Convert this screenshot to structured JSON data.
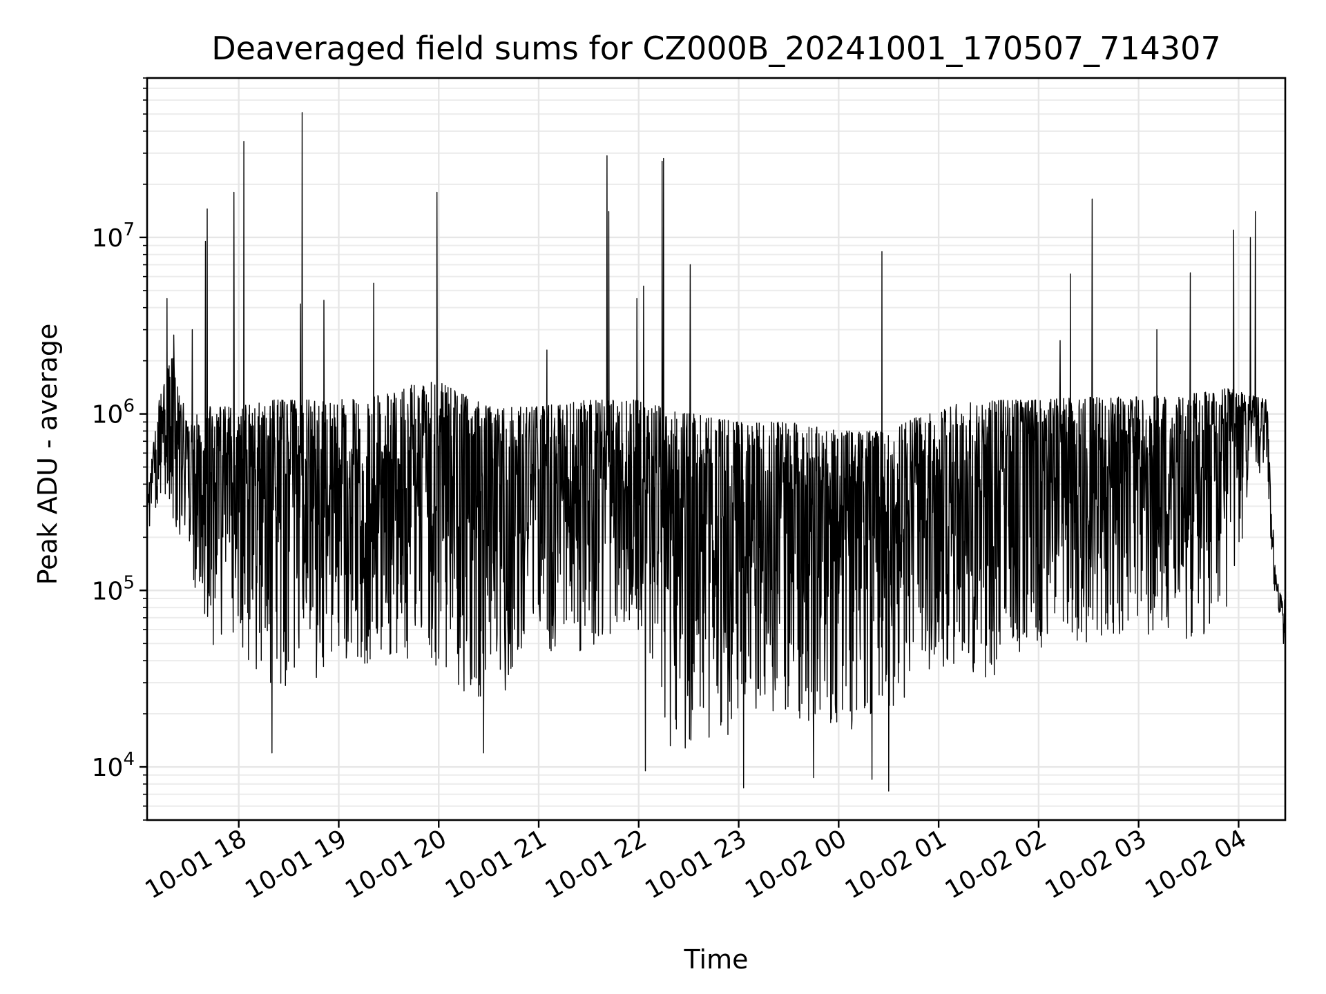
{
  "chart_data": {
    "type": "line",
    "title": "Deaveraged field sums for CZ000B_20241001_170507_714307",
    "xlabel": "Time",
    "ylabel": "Peak ADU - average",
    "yscale": "log",
    "ylim": [
      5000,
      80000000
    ],
    "xlim": [
      "2024-10-01 17:05",
      "2024-10-02 04:28"
    ],
    "x_ticks": [
      {
        "value": "2024-10-01 18:00",
        "label": "10-01 18"
      },
      {
        "value": "2024-10-01 19:00",
        "label": "10-01 19"
      },
      {
        "value": "2024-10-01 20:00",
        "label": "10-01 20"
      },
      {
        "value": "2024-10-01 21:00",
        "label": "10-01 21"
      },
      {
        "value": "2024-10-01 22:00",
        "label": "10-01 22"
      },
      {
        "value": "2024-10-01 23:00",
        "label": "10-01 23"
      },
      {
        "value": "2024-10-02 00:00",
        "label": "10-02 00"
      },
      {
        "value": "2024-10-02 01:00",
        "label": "10-02 01"
      },
      {
        "value": "2024-10-02 02:00",
        "label": "10-02 02"
      },
      {
        "value": "2024-10-02 03:00",
        "label": "10-02 03"
      },
      {
        "value": "2024-10-02 04:00",
        "label": "10-02 04"
      }
    ],
    "y_ticks": [
      {
        "value": 10000,
        "base": "10",
        "exp": "4"
      },
      {
        "value": 100000,
        "base": "10",
        "exp": "5"
      },
      {
        "value": 1000000,
        "base": "10",
        "exp": "6"
      },
      {
        "value": 10000000,
        "base": "10",
        "exp": "7"
      }
    ],
    "grid": true,
    "line_color": "#000000",
    "series": [
      {
        "spikes": [
          {
            "x": "2024-10-01 17:17",
            "y": 4500000
          },
          {
            "x": "2024-10-01 17:21",
            "y": 2800000
          },
          {
            "x": "2024-10-01 17:32",
            "y": 3000000
          },
          {
            "x": "2024-10-01 17:41",
            "y": 14500000
          },
          {
            "x": "2024-10-01 17:40",
            "y": 9500000
          },
          {
            "x": "2024-10-01 17:57",
            "y": 18000000
          },
          {
            "x": "2024-10-01 18:03",
            "y": 35000000
          },
          {
            "x": "2024-10-01 18:38",
            "y": 51000000
          },
          {
            "x": "2024-10-01 18:37",
            "y": 4200000
          },
          {
            "x": "2024-10-01 18:51",
            "y": 4400000
          },
          {
            "x": "2024-10-01 19:21",
            "y": 5500000
          },
          {
            "x": "2024-10-01 19:59",
            "y": 18000000
          },
          {
            "x": "2024-10-01 21:05",
            "y": 2300000
          },
          {
            "x": "2024-10-01 21:41",
            "y": 29000000
          },
          {
            "x": "2024-10-01 21:42",
            "y": 14000000
          },
          {
            "x": "2024-10-01 21:59",
            "y": 4500000
          },
          {
            "x": "2024-10-01 22:03",
            "y": 5300000
          },
          {
            "x": "2024-10-01 22:14",
            "y": 27000000
          },
          {
            "x": "2024-10-01 22:15",
            "y": 28000000
          },
          {
            "x": "2024-10-01 22:31",
            "y": 7000000
          },
          {
            "x": "2024-10-02 00:26",
            "y": 8300000
          },
          {
            "x": "2024-10-02 02:13",
            "y": 2600000
          },
          {
            "x": "2024-10-02 02:19",
            "y": 6200000
          },
          {
            "x": "2024-10-02 02:32",
            "y": 16500000
          },
          {
            "x": "2024-10-02 03:11",
            "y": 3000000
          },
          {
            "x": "2024-10-02 03:31",
            "y": 6300000
          },
          {
            "x": "2024-10-02 03:57",
            "y": 11000000
          },
          {
            "x": "2024-10-02 04:07",
            "y": 10000000
          },
          {
            "x": "2024-10-02 04:10",
            "y": 14000000
          }
        ],
        "dips": [
          {
            "x": "2024-10-01 18:20",
            "y": 12000
          },
          {
            "x": "2024-10-01 20:27",
            "y": 12000
          },
          {
            "x": "2024-10-01 22:04",
            "y": 9500
          },
          {
            "x": "2024-10-01 23:03",
            "y": 7600
          },
          {
            "x": "2024-10-01 23:45",
            "y": 8700
          },
          {
            "x": "2024-10-02 00:20",
            "y": 8500
          },
          {
            "x": "2024-10-02 00:30",
            "y": 7300
          },
          {
            "x": "2024-10-02 04:27",
            "y": 50000
          }
        ],
        "envelope": [
          {
            "x": "2024-10-01 17:05",
            "upper": 350000,
            "lower": 210000
          },
          {
            "x": "2024-10-01 17:12",
            "upper": 1200000,
            "lower": 300000
          },
          {
            "x": "2024-10-01 17:20",
            "upper": 2200000,
            "lower": 250000
          },
          {
            "x": "2024-10-01 17:30",
            "upper": 900000,
            "lower": 150000
          },
          {
            "x": "2024-10-01 17:40",
            "upper": 1100000,
            "lower": 50000
          },
          {
            "x": "2024-10-01 18:00",
            "upper": 1100000,
            "lower": 45000
          },
          {
            "x": "2024-10-01 18:20",
            "upper": 1200000,
            "lower": 25000
          },
          {
            "x": "2024-10-01 19:00",
            "upper": 1200000,
            "lower": 35000
          },
          {
            "x": "2024-10-01 19:30",
            "upper": 1300000,
            "lower": 40000
          },
          {
            "x": "2024-10-01 19:55",
            "upper": 1600000,
            "lower": 40000
          },
          {
            "x": "2024-10-01 20:30",
            "upper": 1100000,
            "lower": 20000
          },
          {
            "x": "2024-10-01 21:00",
            "upper": 1100000,
            "lower": 45000
          },
          {
            "x": "2024-10-01 21:30",
            "upper": 1200000,
            "lower": 45000
          },
          {
            "x": "2024-10-01 22:00",
            "upper": 1200000,
            "lower": 60000
          },
          {
            "x": "2024-10-01 22:20",
            "upper": 1050000,
            "lower": 12000
          },
          {
            "x": "2024-10-01 23:00",
            "upper": 900000,
            "lower": 15000
          },
          {
            "x": "2024-10-01 23:30",
            "upper": 900000,
            "lower": 20000
          },
          {
            "x": "2024-10-02 00:00",
            "upper": 800000,
            "lower": 15000
          },
          {
            "x": "2024-10-02 00:30",
            "upper": 800000,
            "lower": 20000
          },
          {
            "x": "2024-10-02 01:00",
            "upper": 1100000,
            "lower": 35000
          },
          {
            "x": "2024-10-02 01:30",
            "upper": 1200000,
            "lower": 30000
          },
          {
            "x": "2024-10-02 02:00",
            "upper": 1200000,
            "lower": 45000
          },
          {
            "x": "2024-10-02 02:30",
            "upper": 1250000,
            "lower": 50000
          },
          {
            "x": "2024-10-02 03:00",
            "upper": 1250000,
            "lower": 55000
          },
          {
            "x": "2024-10-02 03:30",
            "upper": 1300000,
            "lower": 50000
          },
          {
            "x": "2024-10-02 03:55",
            "upper": 1400000,
            "lower": 60000
          },
          {
            "x": "2024-10-02 04:05",
            "upper": 1300000,
            "lower": 300000
          },
          {
            "x": "2024-10-02 04:17",
            "upper": 1200000,
            "lower": 500000
          },
          {
            "x": "2024-10-02 04:20",
            "upper": 300000,
            "lower": 120000
          },
          {
            "x": "2024-10-02 04:22",
            "upper": 130000,
            "lower": 90000
          },
          {
            "x": "2024-10-02 04:25",
            "upper": 95000,
            "lower": 70000
          },
          {
            "x": "2024-10-02 04:28",
            "upper": 90000,
            "lower": 50000
          }
        ]
      }
    ]
  }
}
